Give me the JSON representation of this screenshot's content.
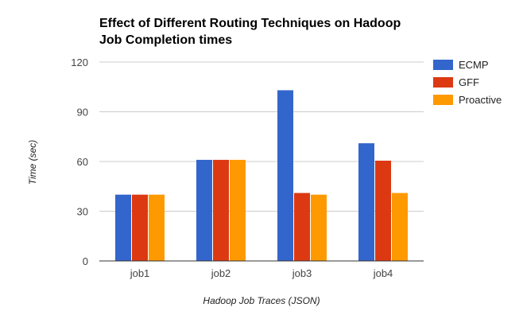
{
  "chart_data": {
    "type": "bar",
    "title_lines": [
      "Effect of Different Routing Techniques on Hadoop",
      "Job Completion times"
    ],
    "xlabel": "Hadoop Job Traces (JSON)",
    "ylabel": "Time (sec)",
    "categories": [
      "job1",
      "job2",
      "job3",
      "job4"
    ],
    "series": [
      {
        "name": "ECMP",
        "color": "#3366cc",
        "values": [
          40,
          61,
          103,
          71
        ]
      },
      {
        "name": "GFF",
        "color": "#dc3912",
        "values": [
          40,
          61,
          41,
          60.5
        ]
      },
      {
        "name": "Proactive",
        "color": "#ff9900",
        "values": [
          40,
          61,
          40,
          41
        ]
      }
    ],
    "ylim": [
      0,
      120
    ],
    "yticks": [
      "0",
      "30",
      "60",
      "90",
      "120"
    ],
    "grid": true,
    "legend_position": "right"
  }
}
